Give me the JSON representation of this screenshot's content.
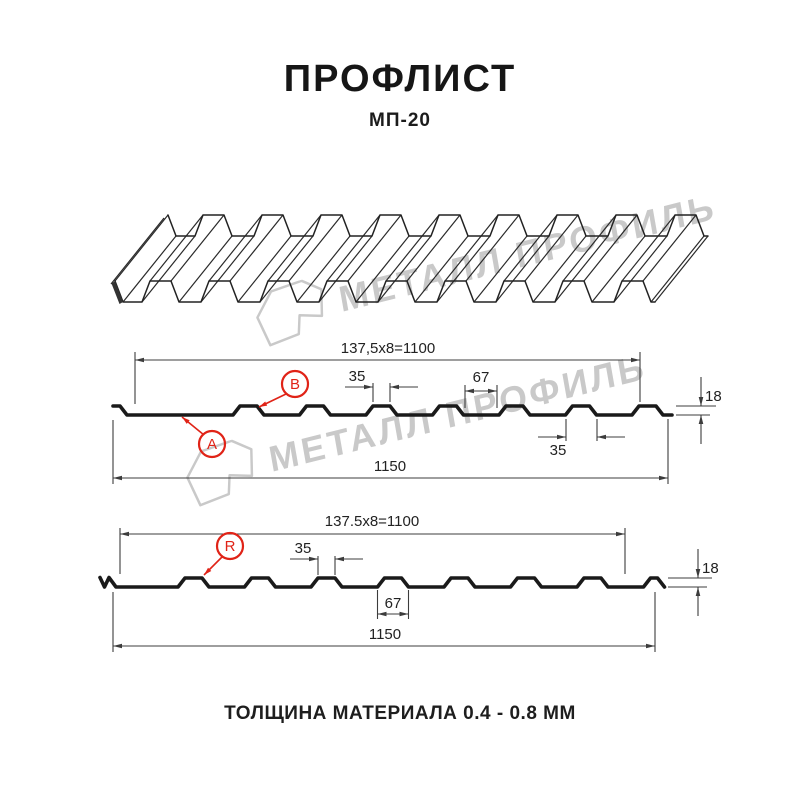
{
  "header": {
    "title": "ПРОФЛИСТ",
    "subtitle": "МП-20"
  },
  "footer": {
    "thickness_note": "ТОЛЩИНА МАТЕРИАЛА 0.4 - 0.8 ММ"
  },
  "watermark": {
    "brand": "МЕТАЛЛ ПРОФИЛЬ"
  },
  "colors": {
    "line": "#1a1a1a",
    "dim": "#3c3c3c",
    "accent_red": "#e02317",
    "watermark_gray": "#c9c9c9"
  },
  "sections": {
    "top": {
      "labels": {
        "a": "А",
        "b": "В"
      },
      "dims": {
        "module": "137,5x8=1100",
        "rib_top_width": "35",
        "valley_width": "67",
        "height": "18",
        "rib_bottom_width": "35",
        "overall_width": "1150"
      }
    },
    "bottom": {
      "labels": {
        "r": "R"
      },
      "dims": {
        "module": "137.5x8=1100",
        "rib_top_width": "35",
        "rib_bottom_width": "67",
        "height": "18",
        "overall_width": "1150"
      }
    }
  }
}
